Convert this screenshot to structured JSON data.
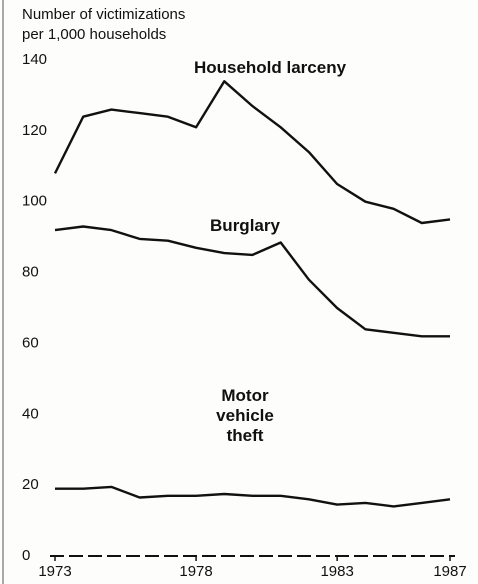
{
  "chart_data": {
    "type": "line",
    "y_label": [
      "Number of victimizations",
      "per 1,000 households"
    ],
    "x": [
      1973,
      1974,
      1975,
      1976,
      1977,
      1978,
      1979,
      1980,
      1981,
      1982,
      1983,
      1984,
      1985,
      1986,
      1987
    ],
    "series": [
      {
        "name": "Household larceny",
        "color": "#111111",
        "values": [
          108,
          124,
          126,
          125,
          124,
          121,
          134,
          127,
          121,
          114,
          105,
          100,
          98,
          94,
          95
        ]
      },
      {
        "name": "Burglary",
        "color": "#111111",
        "values": [
          92,
          93,
          92,
          89.5,
          89,
          87,
          85.5,
          85,
          88.5,
          78,
          70,
          64,
          63,
          62,
          62
        ]
      },
      {
        "name": "Motor vehicle theft",
        "color": "#111111",
        "values": [
          19,
          19,
          19.5,
          16.5,
          17,
          17,
          17.5,
          17,
          17,
          16,
          14.5,
          15,
          14,
          15,
          16
        ]
      }
    ],
    "xlim": [
      1973,
      1987
    ],
    "xticks": [
      1973,
      1978,
      1983,
      1987
    ],
    "ylim": [
      0,
      140
    ],
    "yticks": [
      0,
      20,
      40,
      60,
      80,
      100,
      120,
      140
    ],
    "grid": false
  }
}
